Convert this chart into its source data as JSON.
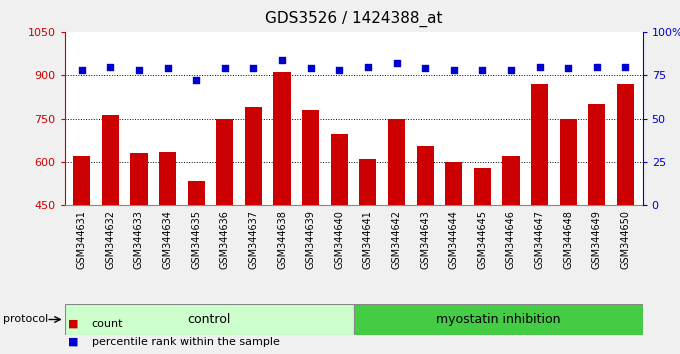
{
  "title": "GDS3526 / 1424388_at",
  "samples": [
    "GSM344631",
    "GSM344632",
    "GSM344633",
    "GSM344634",
    "GSM344635",
    "GSM344636",
    "GSM344637",
    "GSM344638",
    "GSM344639",
    "GSM344640",
    "GSM344641",
    "GSM344642",
    "GSM344643",
    "GSM344644",
    "GSM344645",
    "GSM344646",
    "GSM344647",
    "GSM344648",
    "GSM344649",
    "GSM344650"
  ],
  "bar_values": [
    620,
    763,
    630,
    635,
    535,
    750,
    790,
    910,
    780,
    695,
    610,
    750,
    655,
    600,
    578,
    620,
    870,
    750,
    800,
    870
  ],
  "bar_color": "#cc0000",
  "percentile_values": [
    78,
    80,
    78,
    79,
    72,
    79,
    79,
    84,
    79,
    78,
    80,
    82,
    79,
    78,
    78,
    78,
    80,
    79,
    80,
    80
  ],
  "dot_color": "#0000cc",
  "ylim_left": [
    450,
    1050
  ],
  "ylim_right": [
    0,
    100
  ],
  "yticks_left": [
    450,
    600,
    750,
    900,
    1050
  ],
  "yticks_right": [
    0,
    25,
    50,
    75,
    100
  ],
  "grid_values": [
    600,
    750,
    900
  ],
  "control_count": 10,
  "group_control_label": "control",
  "group_myo_label": "myostatin inhibition",
  "group_control_color": "#ccffcc",
  "group_myo_color": "#44cc44",
  "protocol_label": "protocol",
  "legend_count_color": "#cc0000",
  "legend_dot_color": "#0000cc",
  "legend_count_label": "count",
  "legend_dot_label": "percentile rank within the sample",
  "title_fontsize": 11,
  "tick_fontsize": 7,
  "axis_color_left": "#cc0000",
  "axis_color_right": "#0000cc",
  "fig_bg_color": "#f0f0f0",
  "plot_bg_color": "#ffffff",
  "label_area_color": "#d4d4d4"
}
